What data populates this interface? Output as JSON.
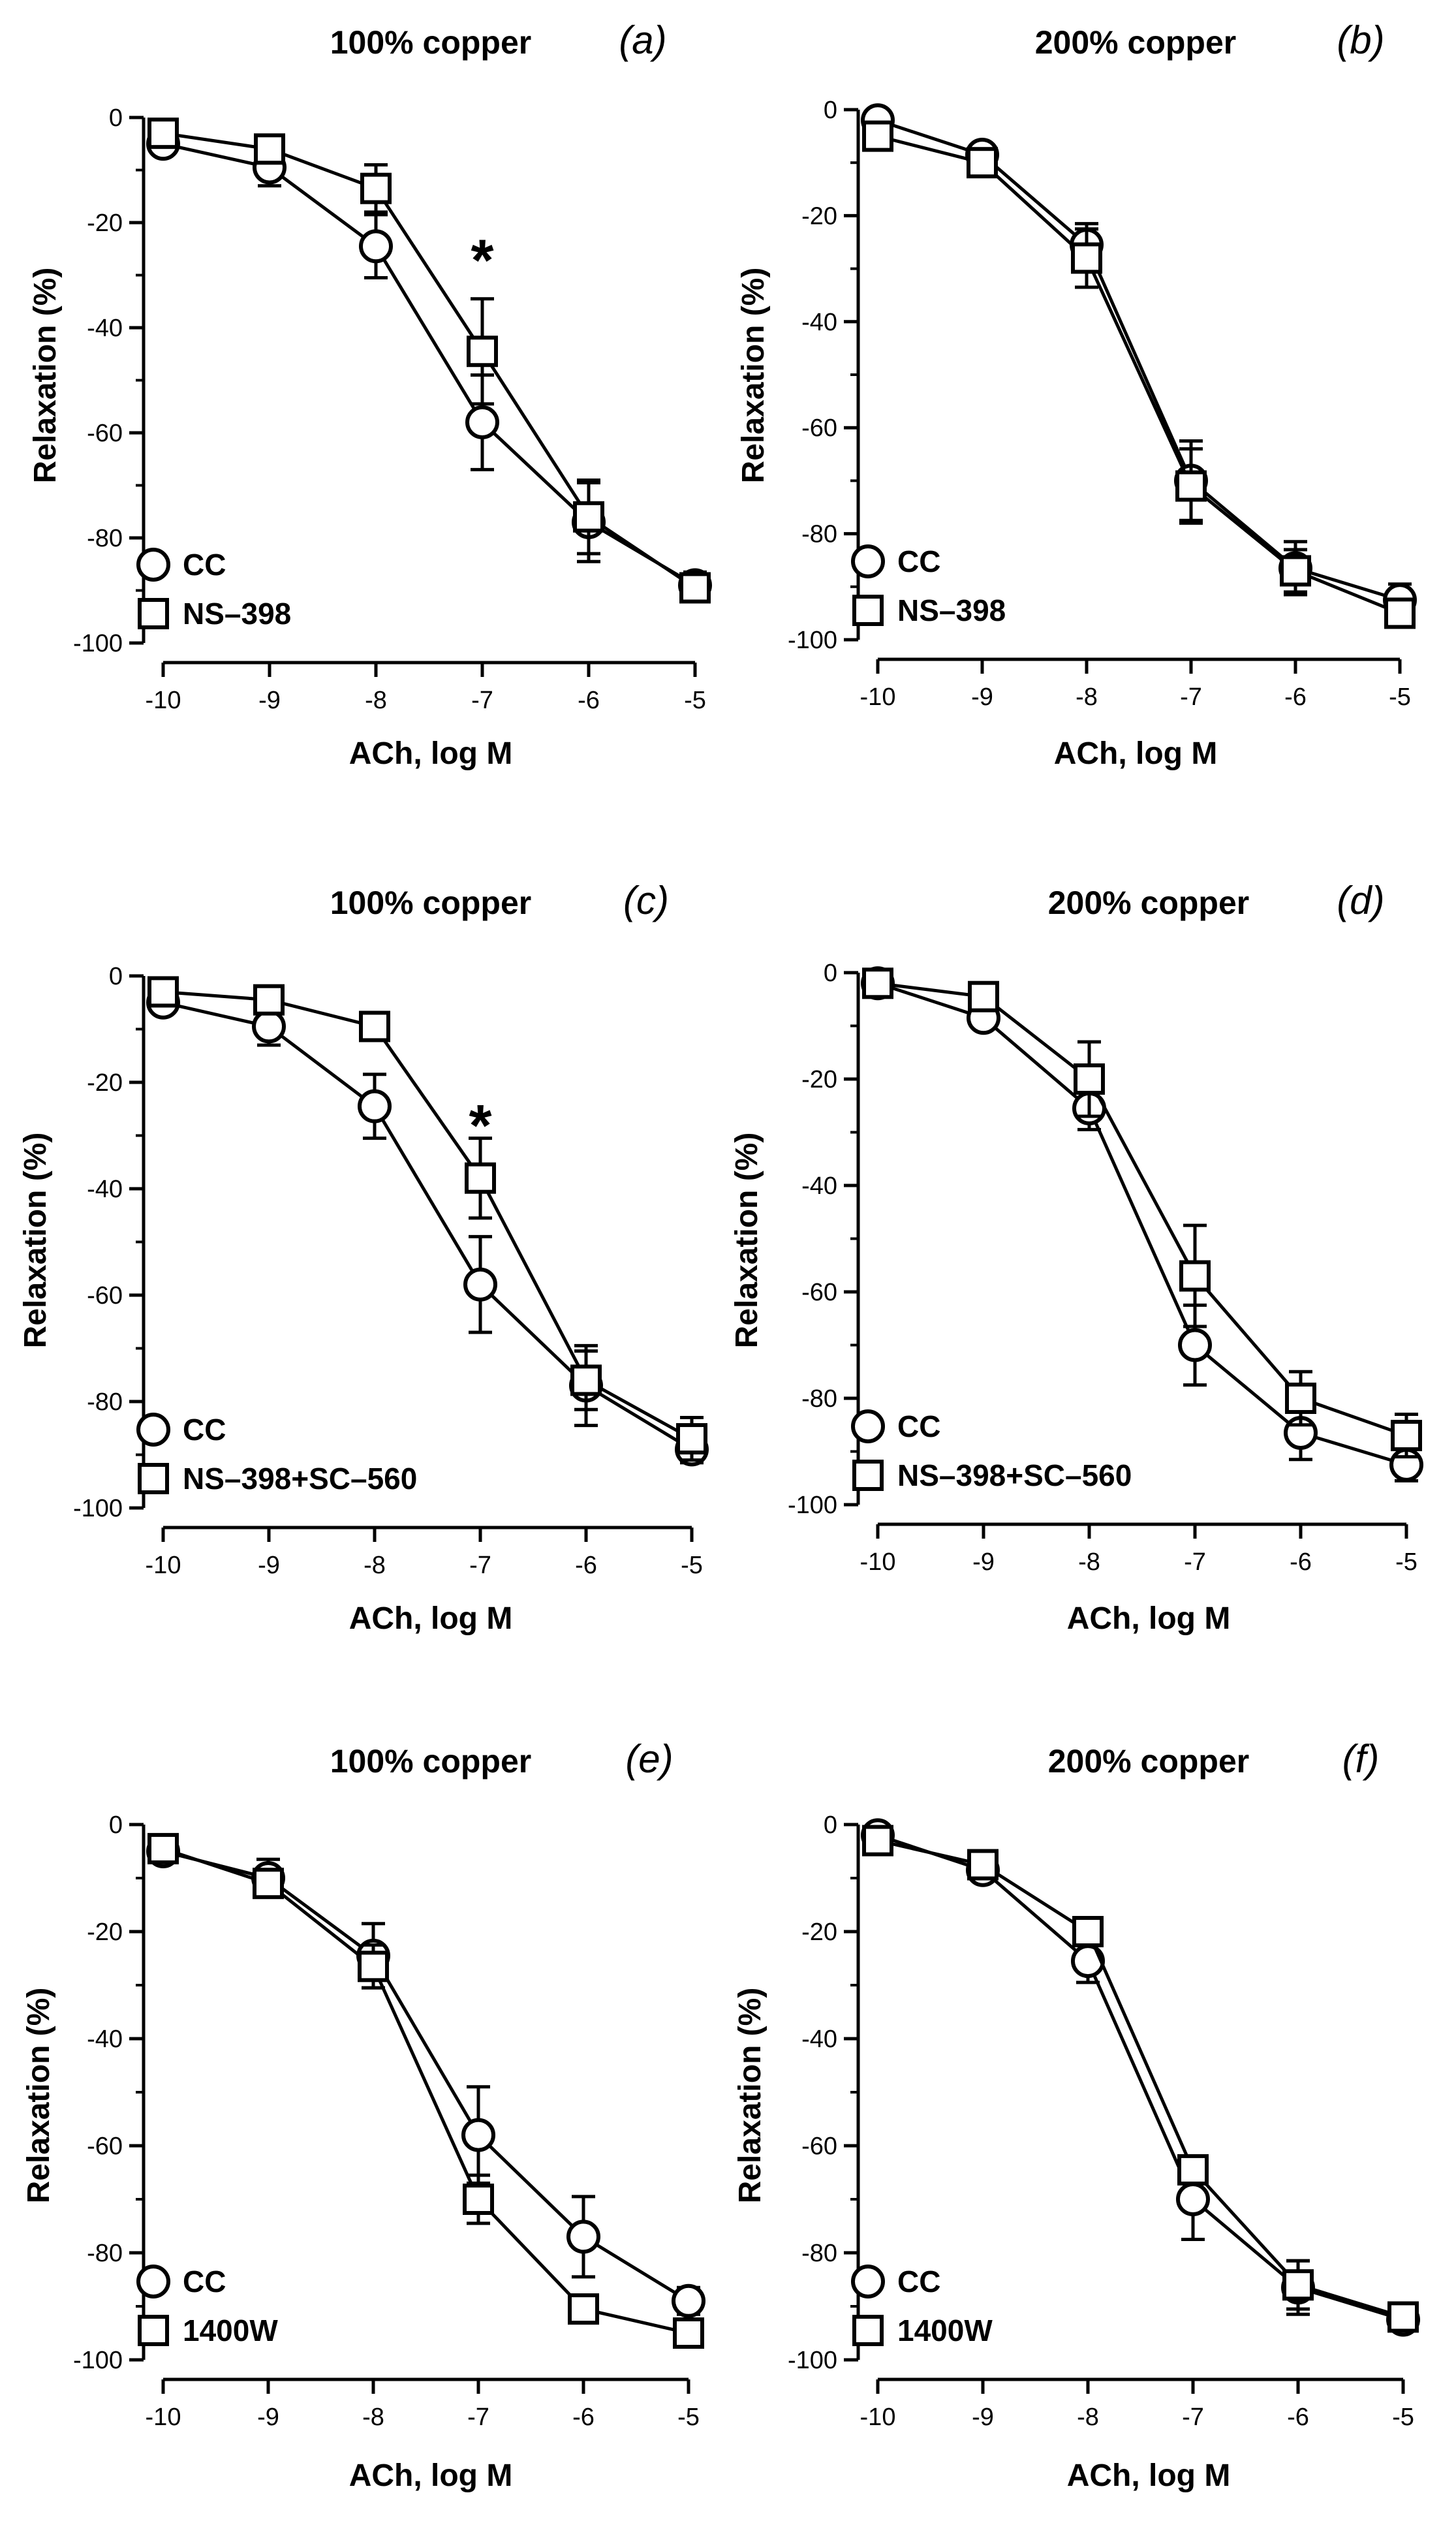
{
  "figure": {
    "background": "#ffffff",
    "ink": "#000000"
  },
  "chart_data": [
    {
      "panel": "(a)",
      "type": "line",
      "title": "100% copper",
      "xlabel": "ACh, log M",
      "ylabel": "Relaxation (%)",
      "x": [
        -10,
        -9,
        -8,
        -7,
        -6,
        -5
      ],
      "xlim": [
        -10,
        -5
      ],
      "ylim": [
        -100,
        0
      ],
      "xticks": [
        "-10",
        "-9",
        "-8",
        "-7",
        "-6",
        "-5"
      ],
      "yticks": [
        "0",
        "-20",
        "-40",
        "-60",
        "-80",
        "-100"
      ],
      "legend_position": "bottom-left",
      "series": [
        {
          "name": "CC",
          "marker": "circle",
          "values": [
            -5,
            -9.5,
            -24.5,
            -58,
            -77,
            -89
          ],
          "errors": [
            0.5,
            3.5,
            6,
            9,
            7.5,
            2.5
          ]
        },
        {
          "name": "NS–398",
          "marker": "square",
          "values": [
            -3,
            -6,
            -13.5,
            -44.5,
            -76,
            -89.5
          ],
          "errors": [
            0.5,
            1,
            4.5,
            10,
            7,
            2.5
          ]
        }
      ],
      "annotations": [
        {
          "text": "*",
          "x": -7,
          "y": -26
        }
      ]
    },
    {
      "panel": "(b)",
      "type": "line",
      "title": "200% copper",
      "xlabel": "ACh, log M",
      "ylabel": "Relaxation (%)",
      "x": [
        -10,
        -9,
        -8,
        -7,
        -6,
        -5
      ],
      "xlim": [
        -10,
        -5
      ],
      "ylim": [
        -100,
        0
      ],
      "xticks": [
        "-10",
        "-9",
        "-8",
        "-7",
        "-6",
        "-5"
      ],
      "yticks": [
        "0",
        "-20",
        "-40",
        "-60",
        "-80",
        "-100"
      ],
      "legend_position": "bottom-left",
      "series": [
        {
          "name": "CC",
          "marker": "circle",
          "values": [
            -2,
            -8.5,
            -25.5,
            -70,
            -86.5,
            -92.5
          ],
          "errors": [
            0.5,
            1.5,
            4,
            7.5,
            5,
            3
          ]
        },
        {
          "name": "NS–398",
          "marker": "square",
          "values": [
            -5,
            -10,
            -28,
            -71,
            -87,
            -95
          ],
          "errors": [
            0.5,
            1,
            5.5,
            7,
            4,
            2
          ]
        }
      ],
      "annotations": []
    },
    {
      "panel": "(c)",
      "type": "line",
      "title": "100% copper",
      "xlabel": "ACh, log M",
      "ylabel": "Relaxation (%)",
      "x": [
        -10,
        -9,
        -8,
        -7,
        -6,
        -5
      ],
      "xlim": [
        -10,
        -5
      ],
      "ylim": [
        -100,
        0
      ],
      "xticks": [
        "-10",
        "-9",
        "-8",
        "-7",
        "-6",
        "-5"
      ],
      "yticks": [
        "0",
        "-20",
        "-40",
        "-60",
        "-80",
        "-100"
      ],
      "legend_position": "bottom-left",
      "series": [
        {
          "name": "CC",
          "marker": "circle",
          "values": [
            -5,
            -9.5,
            -24.5,
            -58,
            -77,
            -89
          ],
          "errors": [
            0.5,
            3.5,
            6,
            9,
            7.5,
            2.5
          ]
        },
        {
          "name": "NS–398+SC–560",
          "marker": "square",
          "values": [
            -3,
            -4.5,
            -9.5,
            -38,
            -76,
            -87
          ],
          "errors": [
            0.5,
            1,
            1.5,
            7.5,
            5.5,
            4
          ]
        }
      ],
      "annotations": [
        {
          "text": "*",
          "x": -7,
          "y": -27
        }
      ]
    },
    {
      "panel": "(d)",
      "type": "line",
      "title": "200% copper",
      "xlabel": "ACh, log M",
      "ylabel": "Relaxation (%)",
      "x": [
        -10,
        -9,
        -8,
        -7,
        -6,
        -5
      ],
      "xlim": [
        -10,
        -5
      ],
      "ylim": [
        -100,
        0
      ],
      "xticks": [
        "-10",
        "-9",
        "-8",
        "-7",
        "-6",
        "-5"
      ],
      "yticks": [
        "0",
        "-20",
        "-40",
        "-60",
        "-80",
        "-100"
      ],
      "legend_position": "bottom-left",
      "series": [
        {
          "name": "CC",
          "marker": "circle",
          "values": [
            -2,
            -8.5,
            -25.5,
            -70,
            -86.5,
            -92.5
          ],
          "errors": [
            0.5,
            1.5,
            4,
            7.5,
            5,
            3
          ]
        },
        {
          "name": "NS–398+SC–560",
          "marker": "square",
          "values": [
            -2,
            -4.5,
            -20,
            -57,
            -80,
            -87
          ],
          "errors": [
            0.5,
            1,
            7,
            9.5,
            5,
            4
          ]
        }
      ],
      "annotations": []
    },
    {
      "panel": "(e)",
      "type": "line",
      "title": "100% copper",
      "xlabel": "ACh, log M",
      "ylabel": "Relaxation (%)",
      "x": [
        -10,
        -9,
        -8,
        -7,
        -6,
        -5
      ],
      "xlim": [
        -10,
        -5
      ],
      "ylim": [
        -100,
        0
      ],
      "xticks": [
        "-10",
        "-9",
        "-8",
        "-7",
        "-6",
        "-5"
      ],
      "yticks": [
        "0",
        "-20",
        "-40",
        "-60",
        "-80",
        "-100"
      ],
      "legend_position": "bottom-left",
      "series": [
        {
          "name": "CC",
          "marker": "circle",
          "values": [
            -5,
            -10,
            -24.5,
            -58,
            -77,
            -89
          ],
          "errors": [
            0.5,
            3.5,
            6,
            9,
            7.5,
            2.5
          ]
        },
        {
          "name": "1400W",
          "marker": "square",
          "values": [
            -4.5,
            -11,
            -26.5,
            -70,
            -90.5,
            -95
          ],
          "errors": [
            0.5,
            1,
            4,
            4.5,
            1,
            1
          ]
        }
      ],
      "annotations": []
    },
    {
      "panel": "(f)",
      "type": "line",
      "title": "200% copper",
      "xlabel": "ACh, log M",
      "ylabel": "Relaxation (%)",
      "x": [
        -10,
        -9,
        -8,
        -7,
        -6,
        -5
      ],
      "xlim": [
        -10,
        -5
      ],
      "ylim": [
        -100,
        0
      ],
      "xticks": [
        "-10",
        "-9",
        "-8",
        "-7",
        "-6",
        "-5"
      ],
      "yticks": [
        "0",
        "-20",
        "-40",
        "-60",
        "-80",
        "-100"
      ],
      "legend_position": "bottom-left",
      "series": [
        {
          "name": "CC",
          "marker": "circle",
          "values": [
            -2,
            -8.5,
            -25.5,
            -70,
            -86.5,
            -92.5
          ],
          "errors": [
            0.5,
            1.5,
            4,
            7.5,
            5,
            1.5
          ]
        },
        {
          "name": "1400W",
          "marker": "square",
          "values": [
            -3,
            -7.5,
            -20,
            -64.5,
            -86,
            -92
          ],
          "errors": [
            0.5,
            1,
            1.5,
            2,
            4.5,
            1.5
          ]
        }
      ],
      "annotations": []
    }
  ]
}
